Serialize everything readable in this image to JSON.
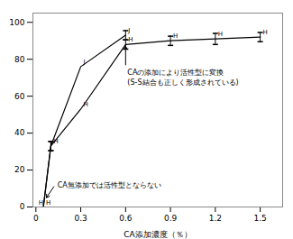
{
  "chart_data": {
    "type": "line",
    "xlabel": "CA添加濃度（％）",
    "xlim": [
      -0.02,
      1.65
    ],
    "ylim": [
      0,
      105
    ],
    "xticks": [
      0,
      0.3,
      0.6,
      0.9,
      1.2,
      1.5
    ],
    "yticks": [
      0,
      20,
      40,
      60,
      80,
      100
    ],
    "color": "#000000",
    "series": [
      {
        "x": [
          0.0,
          0.05,
          0.1,
          0.3,
          0.6
        ],
        "values": [
          0,
          0,
          33,
          76,
          93
        ],
        "yerr": [
          0,
          0,
          2.5,
          0,
          2.5
        ],
        "point_labels": [
          null,
          null,
          null,
          "J",
          "J"
        ]
      },
      {
        "x": [
          0.0,
          0.05,
          0.1,
          0.3,
          0.6,
          0.9,
          1.2,
          1.5
        ],
        "values": [
          0,
          0,
          33,
          53,
          88,
          90,
          91,
          92
        ],
        "yerr": [
          0,
          0,
          2.5,
          0,
          2.5,
          2.5,
          3,
          2.5
        ],
        "point_labels": [
          "H",
          "H",
          "H",
          "H",
          "H",
          "H",
          "H",
          "H"
        ]
      }
    ],
    "annotations": [
      {
        "text": "CAの添加により活性型に変換\n(S-S結合も正しく形成されている)",
        "x": 0.6,
        "y": 87,
        "from_x": 0.6,
        "from_y": 77
      },
      {
        "text": "CA無添加では活性型とならない",
        "x": 0.07,
        "y": 5,
        "from_x": 0.12,
        "from_y": 11
      }
    ]
  }
}
